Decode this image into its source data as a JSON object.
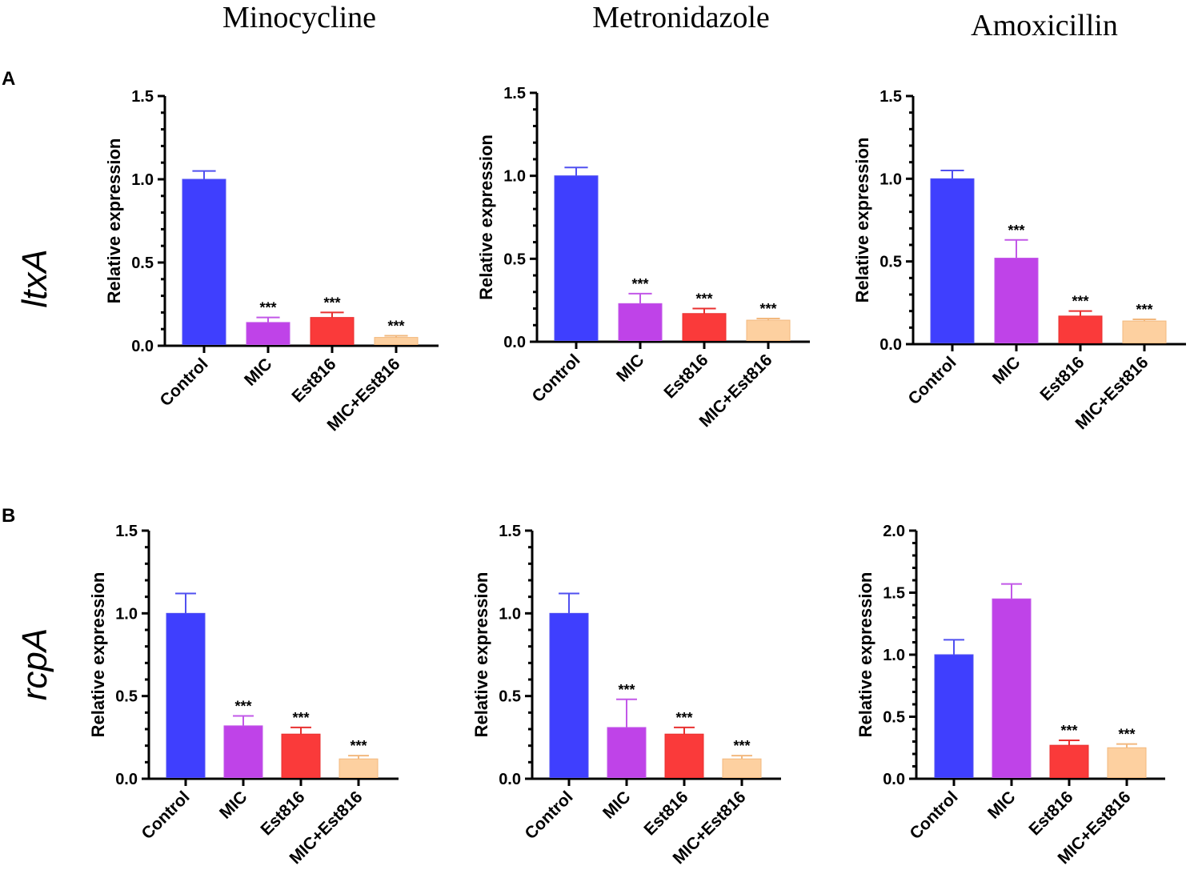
{
  "column_titles": [
    "Minocycline",
    "Metronidazole",
    "Amoxicillin"
  ],
  "panel_letters": [
    "A",
    "B"
  ],
  "row_labels": [
    "ltxA",
    "rcpA"
  ],
  "colors": {
    "Control": "#3f3ffe",
    "MIC": "#bf43e8",
    "Est816": "#fa3a3a",
    "MIC+Est816": "#fdd0a0"
  },
  "chart_data": [
    {
      "type": "bar",
      "row": 0,
      "col": 0,
      "title": "Minocycline",
      "row_label": "ltxA",
      "ylabel": "Relative expression",
      "xlabel": "",
      "ylim": [
        0,
        1.5
      ],
      "yticks": [
        "0.0",
        "0.5",
        "1.0",
        "1.5"
      ],
      "categories": [
        "Control",
        "MIC",
        "Est816",
        "MIC+Est816"
      ],
      "values": [
        1.0,
        0.14,
        0.17,
        0.05
      ],
      "errors": [
        0.05,
        0.03,
        0.03,
        0.01
      ],
      "significance": [
        "",
        "***",
        "***",
        "***"
      ]
    },
    {
      "type": "bar",
      "row": 0,
      "col": 1,
      "title": "Metronidazole",
      "row_label": "ltxA",
      "ylabel": "Relative expression",
      "xlabel": "",
      "ylim": [
        0,
        1.5
      ],
      "yticks": [
        "0.0",
        "0.5",
        "1.0",
        "1.5"
      ],
      "categories": [
        "Control",
        "MIC",
        "Est816",
        "MIC+Est816"
      ],
      "values": [
        1.0,
        0.23,
        0.17,
        0.13
      ],
      "errors": [
        0.05,
        0.06,
        0.03,
        0.01
      ],
      "significance": [
        "",
        "***",
        "***",
        "***"
      ]
    },
    {
      "type": "bar",
      "row": 0,
      "col": 2,
      "title": "Amoxicillin",
      "row_label": "ltxA",
      "ylabel": "Relative expression",
      "xlabel": "",
      "ylim": [
        0,
        1.5
      ],
      "yticks": [
        "0.0",
        "0.5",
        "1.0",
        "1.5"
      ],
      "categories": [
        "Control",
        "MIC",
        "Est816",
        "MIC+Est816"
      ],
      "values": [
        1.0,
        0.52,
        0.17,
        0.14
      ],
      "errors": [
        0.05,
        0.11,
        0.03,
        0.01
      ],
      "significance": [
        "",
        "***",
        "***",
        "***"
      ]
    },
    {
      "type": "bar",
      "row": 1,
      "col": 0,
      "title": "Minocycline",
      "row_label": "rcpA",
      "ylabel": "Relative expression",
      "xlabel": "",
      "ylim": [
        0,
        1.5
      ],
      "yticks": [
        "0.0",
        "0.5",
        "1.0",
        "1.5"
      ],
      "categories": [
        "Control",
        "MIC",
        "Est816",
        "MIC+Est816"
      ],
      "values": [
        1.0,
        0.32,
        0.27,
        0.12
      ],
      "errors": [
        0.12,
        0.06,
        0.04,
        0.02
      ],
      "significance": [
        "",
        "***",
        "***",
        "***"
      ]
    },
    {
      "type": "bar",
      "row": 1,
      "col": 1,
      "title": "Metronidazole",
      "row_label": "rcpA",
      "ylabel": "Relative expression",
      "xlabel": "",
      "ylim": [
        0,
        1.5
      ],
      "yticks": [
        "0.0",
        "0.5",
        "1.0",
        "1.5"
      ],
      "categories": [
        "Control",
        "MIC",
        "Est816",
        "MIC+Est816"
      ],
      "values": [
        1.0,
        0.31,
        0.27,
        0.12
      ],
      "errors": [
        0.12,
        0.17,
        0.04,
        0.02
      ],
      "significance": [
        "",
        "***",
        "***",
        "***"
      ]
    },
    {
      "type": "bar",
      "row": 1,
      "col": 2,
      "title": "Amoxicillin",
      "row_label": "rcpA",
      "ylabel": "Relative expression",
      "xlabel": "",
      "ylim": [
        0,
        2.0
      ],
      "yticks": [
        "0.0",
        "0.5",
        "1.0",
        "1.5",
        "2.0"
      ],
      "categories": [
        "Control",
        "MIC",
        "Est816",
        "MIC+Est816"
      ],
      "values": [
        1.0,
        1.45,
        0.27,
        0.25
      ],
      "errors": [
        0.12,
        0.12,
        0.04,
        0.03
      ],
      "significance": [
        "",
        "",
        "***",
        "***"
      ]
    }
  ]
}
